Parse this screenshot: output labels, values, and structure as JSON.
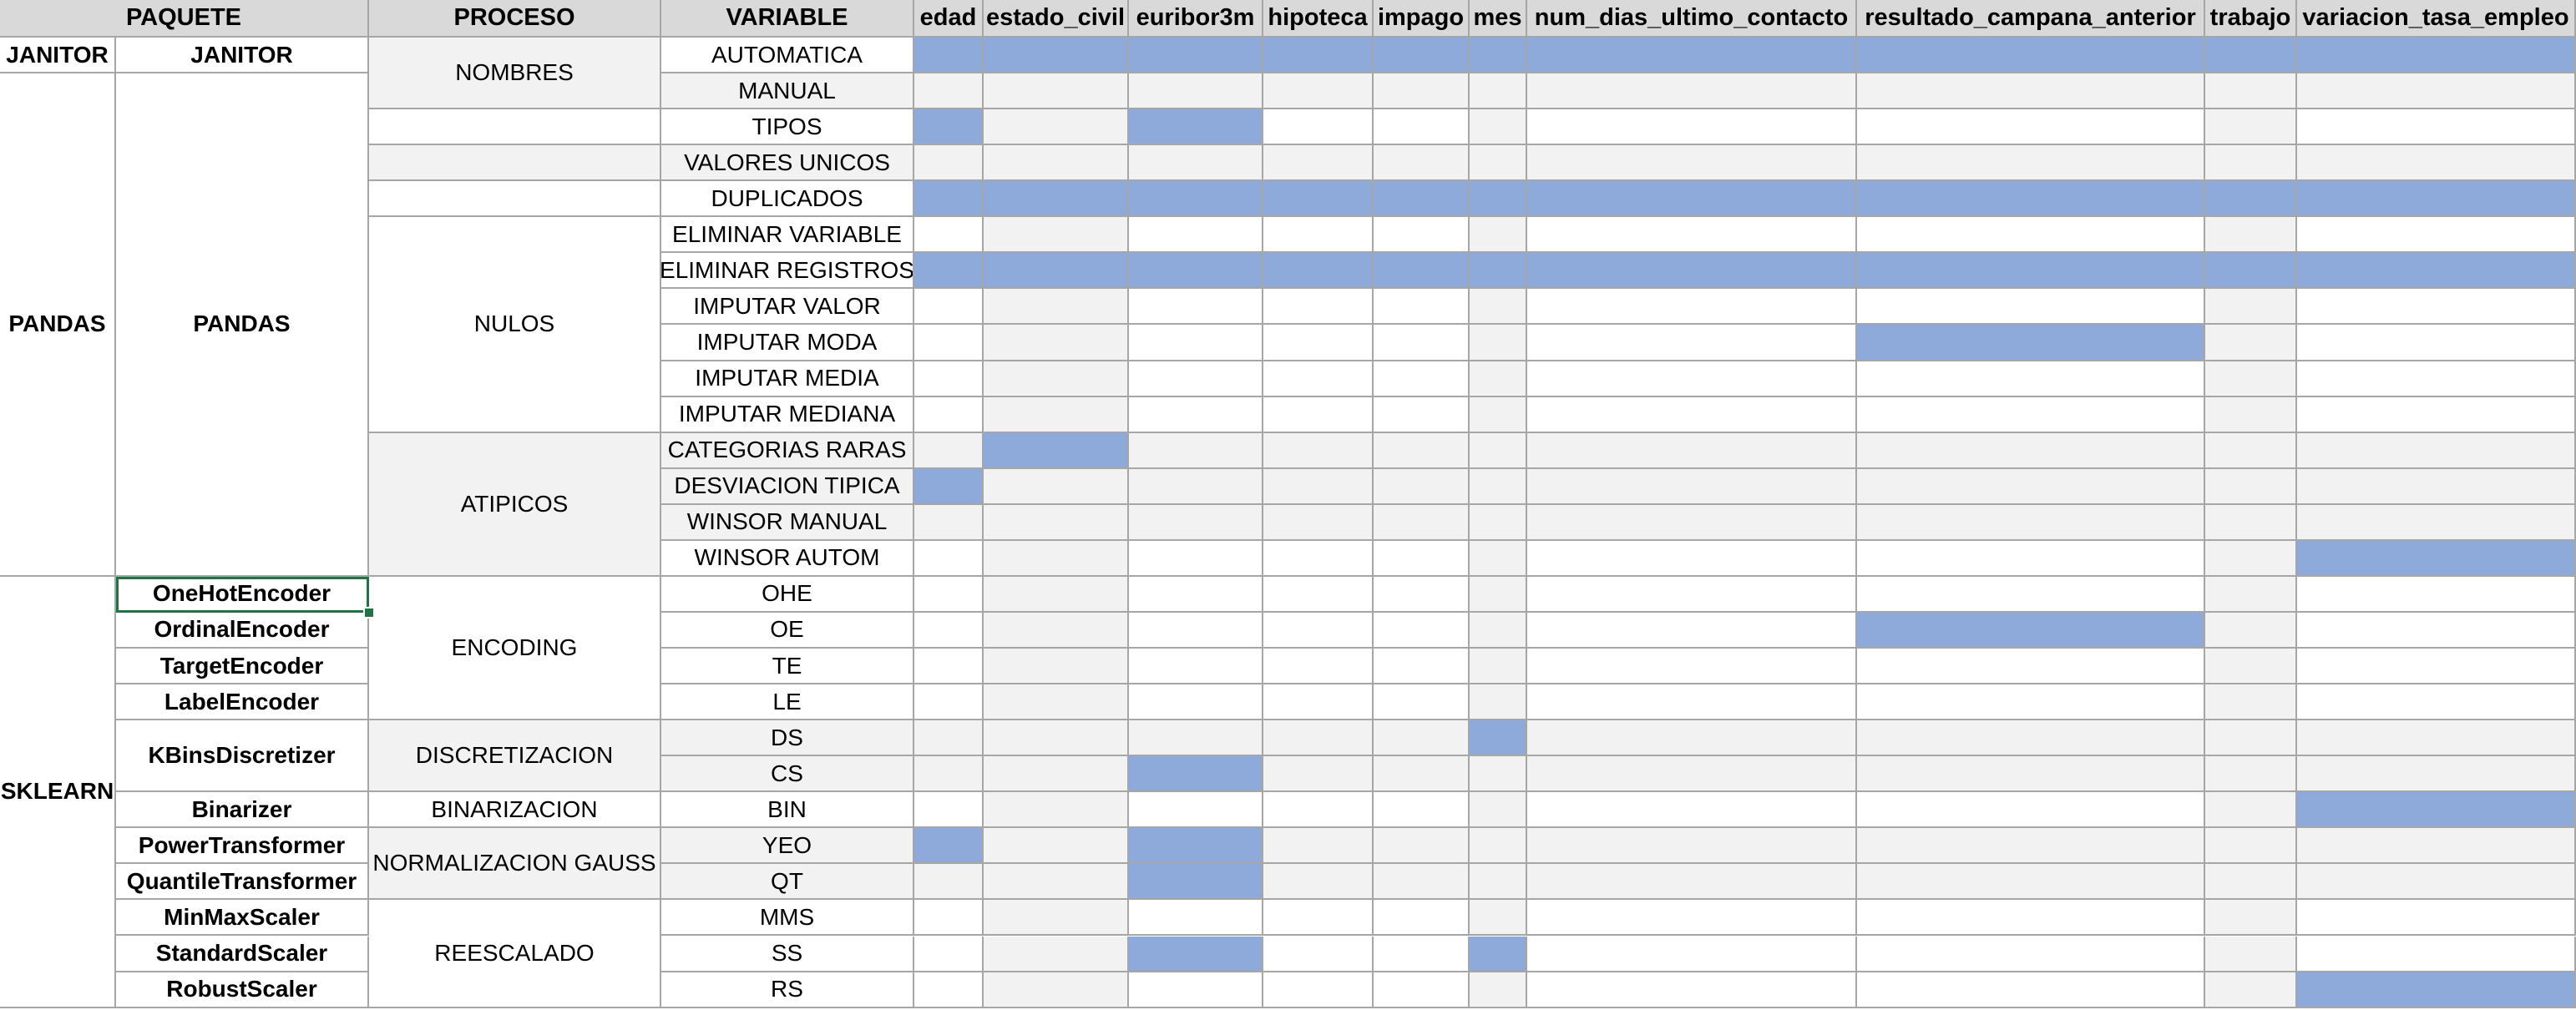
{
  "headers": [
    "PAQUETE",
    "PROCESO",
    "VARIABLE",
    "edad",
    "estado_civil",
    "euribor3m",
    "hipoteca",
    "impago",
    "mes",
    "num_dias_ultimo_contacto",
    "resultado_campana_anterior",
    "trabajo",
    "variacion_tasa_empleo"
  ],
  "colors": {
    "header": "#d9d9d9",
    "mark": "#8eaadb",
    "shade": "#f2f2f2",
    "plain": "#ffffff",
    "selection": "#217346"
  },
  "packages": [
    {
      "label": "JANITOR",
      "rows": [
        0,
        0
      ]
    },
    {
      "label": "PANDAS",
      "rows": [
        1,
        14
      ]
    },
    {
      "label": "SKLEARN",
      "rows": [
        15,
        26
      ]
    }
  ],
  "classes": [
    {
      "label": "JANITOR",
      "rows": [
        0,
        0
      ]
    },
    {
      "label": "PANDAS",
      "rows": [
        1,
        14
      ]
    },
    {
      "label": "OneHotEncoder",
      "rows": [
        15,
        15
      ],
      "selected": true
    },
    {
      "label": "OrdinalEncoder",
      "rows": [
        16,
        16
      ]
    },
    {
      "label": "TargetEncoder",
      "rows": [
        17,
        17
      ]
    },
    {
      "label": "LabelEncoder",
      "rows": [
        18,
        18
      ]
    },
    {
      "label": "KBinsDiscretizer",
      "rows": [
        19,
        20
      ]
    },
    {
      "label": "Binarizer",
      "rows": [
        21,
        21
      ]
    },
    {
      "label": "PowerTransformer",
      "rows": [
        22,
        22
      ]
    },
    {
      "label": "QuantileTransformer",
      "rows": [
        23,
        23
      ]
    },
    {
      "label": "MinMaxScaler",
      "rows": [
        24,
        24
      ]
    },
    {
      "label": "StandardScaler",
      "rows": [
        25,
        25
      ]
    },
    {
      "label": "RobustScaler",
      "rows": [
        26,
        26
      ]
    }
  ],
  "processes": [
    {
      "label": "NOMBRES",
      "rows": [
        0,
        1
      ],
      "shaded": true
    },
    {
      "label": "",
      "rows": [
        2,
        2
      ],
      "shaded": false
    },
    {
      "label": "",
      "rows": [
        3,
        3
      ],
      "shaded": true
    },
    {
      "label": "",
      "rows": [
        4,
        4
      ],
      "shaded": false
    },
    {
      "label": "NULOS",
      "rows": [
        5,
        10
      ],
      "shaded": false
    },
    {
      "label": "ATIPICOS",
      "rows": [
        11,
        14
      ],
      "shaded": true
    },
    {
      "label": "ENCODING",
      "rows": [
        15,
        18
      ],
      "shaded": false
    },
    {
      "label": "DISCRETIZACION",
      "rows": [
        19,
        20
      ],
      "shaded": true
    },
    {
      "label": "BINARIZACION",
      "rows": [
        21,
        21
      ],
      "shaded": false
    },
    {
      "label": "NORMALIZACION GAUSS",
      "rows": [
        22,
        23
      ],
      "shaded": true
    },
    {
      "label": "REESCALADO",
      "rows": [
        24,
        26
      ],
      "shaded": false
    }
  ],
  "variables": [
    "AUTOMATICA",
    "MANUAL",
    "TIPOS",
    "VALORES UNICOS",
    "DUPLICADOS",
    "ELIMINAR VARIABLE",
    "ELIMINAR REGISTROS",
    "IMPUTAR VALOR",
    "IMPUTAR MODA",
    "IMPUTAR MEDIA",
    "IMPUTAR MEDIANA",
    "CATEGORIAS RARAS",
    "DESVIACION TIPICA",
    "WINSOR MANUAL",
    "WINSOR AUTOM",
    "OHE",
    "OE",
    "TE",
    "LE",
    "DS",
    "CS",
    "BIN",
    "YEO",
    "QT",
    "MMS",
    "SS",
    "RS"
  ],
  "variable_shaded": [
    false,
    true,
    false,
    true,
    false,
    false,
    false,
    false,
    false,
    false,
    false,
    true,
    true,
    true,
    false,
    false,
    false,
    false,
    false,
    true,
    true,
    false,
    true,
    true,
    false,
    false,
    false
  ],
  "marks": [
    [
      1,
      1,
      1,
      1,
      1,
      1,
      1,
      1,
      1,
      1
    ],
    [
      0,
      0,
      0,
      0,
      0,
      0,
      0,
      0,
      0,
      0
    ],
    [
      1,
      0,
      1,
      0,
      0,
      0,
      0,
      0,
      0,
      0
    ],
    [
      0,
      0,
      0,
      0,
      0,
      0,
      0,
      0,
      0,
      0
    ],
    [
      1,
      1,
      1,
      1,
      1,
      1,
      1,
      1,
      1,
      1
    ],
    [
      0,
      0,
      0,
      0,
      0,
      0,
      0,
      0,
      0,
      0
    ],
    [
      1,
      1,
      1,
      1,
      1,
      1,
      1,
      1,
      1,
      1
    ],
    [
      0,
      0,
      0,
      0,
      0,
      0,
      0,
      0,
      0,
      0
    ],
    [
      0,
      0,
      0,
      0,
      0,
      0,
      0,
      1,
      0,
      0
    ],
    [
      0,
      0,
      0,
      0,
      0,
      0,
      0,
      0,
      0,
      0
    ],
    [
      0,
      0,
      0,
      0,
      0,
      0,
      0,
      0,
      0,
      0
    ],
    [
      0,
      1,
      0,
      0,
      0,
      0,
      0,
      0,
      0,
      0
    ],
    [
      1,
      0,
      0,
      0,
      0,
      0,
      0,
      0,
      0,
      0
    ],
    [
      0,
      0,
      0,
      0,
      0,
      0,
      0,
      0,
      0,
      0
    ],
    [
      0,
      0,
      0,
      0,
      0,
      0,
      0,
      0,
      0,
      1
    ],
    [
      0,
      0,
      0,
      0,
      0,
      0,
      0,
      0,
      0,
      0
    ],
    [
      0,
      0,
      0,
      0,
      0,
      0,
      0,
      1,
      0,
      0
    ],
    [
      0,
      0,
      0,
      0,
      0,
      0,
      0,
      0,
      0,
      0
    ],
    [
      0,
      0,
      0,
      0,
      0,
      0,
      0,
      0,
      0,
      0
    ],
    [
      0,
      0,
      0,
      0,
      0,
      1,
      0,
      0,
      0,
      0
    ],
    [
      0,
      0,
      1,
      0,
      0,
      0,
      0,
      0,
      0,
      0
    ],
    [
      0,
      0,
      0,
      0,
      0,
      0,
      0,
      0,
      0,
      1
    ],
    [
      1,
      0,
      1,
      0,
      0,
      0,
      0,
      0,
      0,
      0
    ],
    [
      0,
      0,
      1,
      0,
      0,
      0,
      0,
      0,
      0,
      0
    ],
    [
      0,
      0,
      0,
      0,
      0,
      0,
      0,
      0,
      0,
      0
    ],
    [
      0,
      0,
      1,
      0,
      0,
      1,
      0,
      0,
      0,
      0
    ],
    [
      0,
      0,
      0,
      0,
      0,
      0,
      0,
      0,
      0,
      1
    ]
  ],
  "shaded_columns": [
    1,
    5,
    8
  ]
}
